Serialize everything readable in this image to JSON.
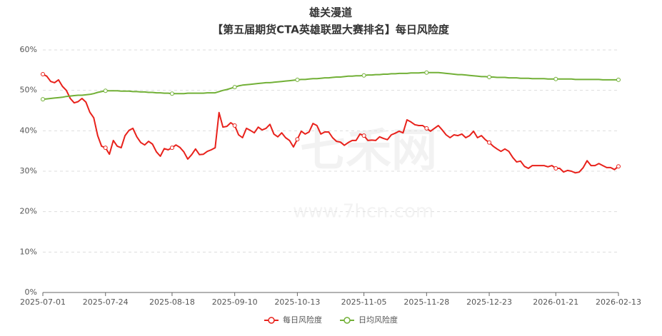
{
  "chart_data": {
    "type": "line",
    "title": "雄关漫道",
    "subtitle": "【第五届期货CTA英雄联盟大赛排名】每日风险度",
    "watermark": "七禾网",
    "watermark_url": "www.7hcn.com",
    "categories": [
      "2025-07-01",
      null,
      null,
      null,
      null,
      null,
      null,
      null,
      null,
      null,
      null,
      null,
      null,
      null,
      null,
      null,
      "2025-07-24",
      null,
      null,
      null,
      null,
      null,
      null,
      null,
      null,
      null,
      null,
      null,
      null,
      null,
      null,
      null,
      null,
      "2025-08-18",
      null,
      null,
      null,
      null,
      null,
      null,
      null,
      null,
      null,
      null,
      null,
      null,
      null,
      null,
      null,
      "2025-09-10",
      null,
      null,
      null,
      null,
      null,
      null,
      null,
      null,
      null,
      null,
      null,
      null,
      null,
      null,
      null,
      "2025-10-13",
      null,
      null,
      null,
      null,
      null,
      null,
      null,
      null,
      null,
      null,
      null,
      null,
      null,
      null,
      null,
      null,
      "2025-11-05",
      null,
      null,
      null,
      null,
      null,
      null,
      null,
      null,
      null,
      null,
      null,
      null,
      null,
      null,
      null,
      "2025-11-28",
      null,
      null,
      null,
      null,
      null,
      null,
      null,
      null,
      null,
      null,
      null,
      null,
      null,
      null,
      null,
      "2025-12-23",
      null,
      null,
      null,
      null,
      null,
      null,
      null,
      null,
      null,
      null,
      null,
      null,
      null,
      null,
      null,
      null,
      "2026-01-21",
      null,
      null,
      null,
      null,
      null,
      null,
      null,
      null,
      null,
      null,
      null,
      null,
      null,
      null,
      null,
      "2026-02-13"
    ],
    "series": [
      {
        "name": "每日风险度",
        "color": "#e8211b",
        "values": [
          54.0,
          53.5,
          52.2,
          51.9,
          52.6,
          51.0,
          50.0,
          48.0,
          46.9,
          47.2,
          48.0,
          47.1,
          44.6,
          43.2,
          38.8,
          36.2,
          35.8,
          34.2,
          37.6,
          36.2,
          35.8,
          38.8,
          40.1,
          40.6,
          38.5,
          37.1,
          36.5,
          37.4,
          36.7,
          34.8,
          33.7,
          35.6,
          35.3,
          35.8,
          36.5,
          35.9,
          34.8,
          33.0,
          34.1,
          35.5,
          34.1,
          34.2,
          34.9,
          35.3,
          35.8,
          44.5,
          40.9,
          41.1,
          42.0,
          41.3,
          39.0,
          38.3,
          40.6,
          40.1,
          39.5,
          40.9,
          40.2,
          40.6,
          41.6,
          39.2,
          38.5,
          39.5,
          38.3,
          37.6,
          36.0,
          37.9,
          39.9,
          39.2,
          39.7,
          41.8,
          41.3,
          39.2,
          39.7,
          39.7,
          38.3,
          37.4,
          37.2,
          36.4,
          37.1,
          37.6,
          37.6,
          39.2,
          38.8,
          37.6,
          37.7,
          37.6,
          38.5,
          38.1,
          37.8,
          39.0,
          39.4,
          39.9,
          39.5,
          42.7,
          42.2,
          41.5,
          41.3,
          41.3,
          40.6,
          39.9,
          40.6,
          41.3,
          40.2,
          39.0,
          38.3,
          39.0,
          38.8,
          39.2,
          38.3,
          38.8,
          39.9,
          38.3,
          38.8,
          37.8,
          37.1,
          36.2,
          35.5,
          34.9,
          35.5,
          34.9,
          33.4,
          32.3,
          32.5,
          31.2,
          30.7,
          31.4,
          31.4,
          31.4,
          31.4,
          31.1,
          31.4,
          30.7,
          30.7,
          29.8,
          30.2,
          30.0,
          29.6,
          29.8,
          30.9,
          32.6,
          31.4,
          31.4,
          31.9,
          31.4,
          30.9,
          30.9,
          30.4,
          31.2
        ]
      },
      {
        "name": "日均风险度",
        "color": "#72b037",
        "values": [
          47.8,
          47.9,
          48.0,
          48.1,
          48.2,
          48.3,
          48.5,
          48.6,
          48.7,
          48.8,
          48.8,
          48.9,
          49.0,
          49.2,
          49.5,
          49.7,
          49.9,
          49.9,
          49.9,
          49.9,
          49.8,
          49.8,
          49.8,
          49.7,
          49.7,
          49.6,
          49.6,
          49.5,
          49.5,
          49.4,
          49.4,
          49.3,
          49.3,
          49.2,
          49.2,
          49.2,
          49.2,
          49.3,
          49.3,
          49.3,
          49.3,
          49.3,
          49.4,
          49.4,
          49.4,
          49.7,
          50.0,
          50.2,
          50.5,
          50.8,
          51.1,
          51.3,
          51.4,
          51.5,
          51.6,
          51.7,
          51.8,
          51.9,
          51.9,
          52.0,
          52.1,
          52.2,
          52.3,
          52.4,
          52.5,
          52.6,
          52.7,
          52.7,
          52.8,
          52.9,
          52.9,
          53.0,
          53.1,
          53.1,
          53.2,
          53.3,
          53.3,
          53.4,
          53.5,
          53.5,
          53.6,
          53.6,
          53.7,
          53.8,
          53.8,
          53.9,
          53.9,
          54.0,
          54.0,
          54.1,
          54.1,
          54.2,
          54.2,
          54.2,
          54.3,
          54.3,
          54.3,
          54.4,
          54.4,
          54.4,
          54.4,
          54.4,
          54.3,
          54.2,
          54.1,
          54.0,
          53.9,
          53.9,
          53.8,
          53.7,
          53.6,
          53.5,
          53.4,
          53.4,
          53.3,
          53.3,
          53.2,
          53.2,
          53.2,
          53.1,
          53.1,
          53.1,
          53.0,
          53.0,
          53.0,
          52.9,
          52.9,
          52.9,
          52.9,
          52.8,
          52.8,
          52.8,
          52.8,
          52.8,
          52.8,
          52.8,
          52.7,
          52.7,
          52.7,
          52.7,
          52.7,
          52.7,
          52.7,
          52.6,
          52.6,
          52.6,
          52.6,
          52.6
        ]
      }
    ],
    "ylim": [
      0,
      60
    ],
    "yticks": [
      {
        "value": 0,
        "label": "0%"
      },
      {
        "value": 10,
        "label": "10%"
      },
      {
        "value": 20,
        "label": "20%"
      },
      {
        "value": 30,
        "label": "30%"
      },
      {
        "value": 40,
        "label": "40%"
      },
      {
        "value": 50,
        "label": "50%"
      },
      {
        "value": 60,
        "label": "60%"
      }
    ],
    "grid": true,
    "legend": "bottom"
  }
}
